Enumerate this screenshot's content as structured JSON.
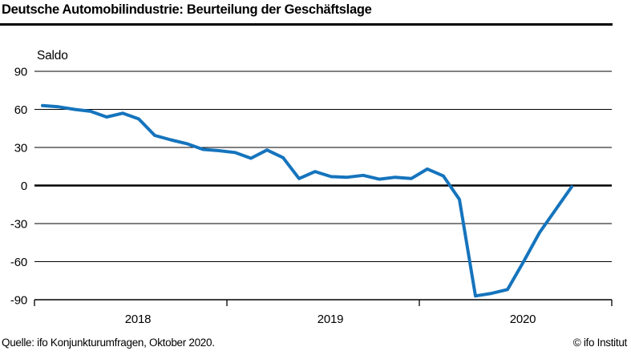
{
  "header": {
    "title": "Deutsche Automobilindustrie: Beurteilung der Geschäftslage"
  },
  "footer": {
    "source": "Quelle: ifo Konjunkturumfragen, Oktober 2020.",
    "copyright": "© ifo Institut"
  },
  "chart_data": {
    "type": "line",
    "title": "Deutsche Automobilindustrie: Beurteilung der Geschäftslage",
    "ylabel": "Saldo",
    "ylim": [
      -90,
      90
    ],
    "yticks": [
      90,
      60,
      30,
      0,
      -30,
      -60,
      -90
    ],
    "grid": "horizontal",
    "legend": "none",
    "line_color": "#1574bd",
    "x_year_labels": [
      "2018",
      "2019",
      "2020"
    ],
    "x": [
      "2018-01",
      "2018-02",
      "2018-03",
      "2018-04",
      "2018-05",
      "2018-06",
      "2018-07",
      "2018-08",
      "2018-09",
      "2018-10",
      "2018-11",
      "2018-12",
      "2019-01",
      "2019-02",
      "2019-03",
      "2019-04",
      "2019-05",
      "2019-06",
      "2019-07",
      "2019-08",
      "2019-09",
      "2019-10",
      "2019-11",
      "2019-12",
      "2020-01",
      "2020-02",
      "2020-03",
      "2020-04",
      "2020-05",
      "2020-06",
      "2020-07",
      "2020-08",
      "2020-09",
      "2020-10"
    ],
    "values": [
      63,
      62,
      60,
      58.5,
      54,
      57,
      52.5,
      39.5,
      36,
      33,
      28.5,
      27.5,
      26,
      21.5,
      28,
      22,
      5.5,
      11,
      7,
      6.5,
      8,
      5,
      6.5,
      5.5,
      13,
      7.5,
      -11,
      -87,
      -85,
      -82,
      -60,
      -37,
      -19,
      -1
    ]
  }
}
